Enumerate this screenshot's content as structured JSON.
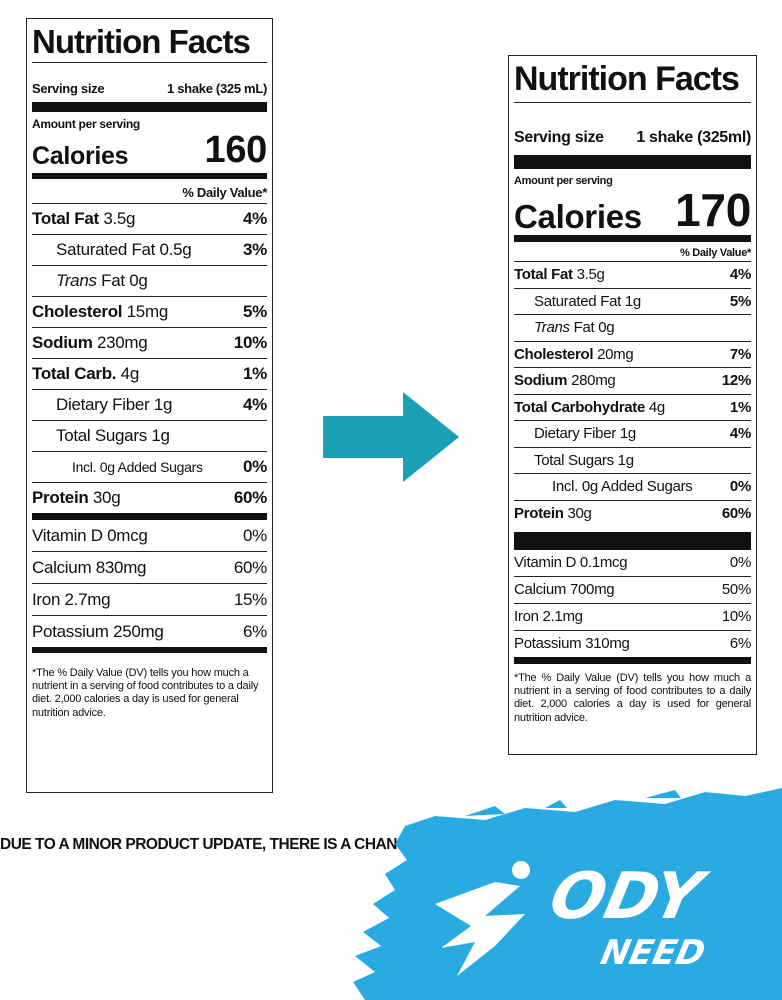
{
  "old_label": {
    "title": "Nutrition Facts",
    "serving_label": "Serving size",
    "serving_value": "1 shake (325 mL)",
    "amount_per_serving": "Amount per serving",
    "calories_label": "Calories",
    "calories_value": "160",
    "daily_value_header": "% Daily Value*",
    "total_fat": {
      "label": "Total Fat",
      "amount": "3.5g",
      "dv": "4%"
    },
    "saturated_fat": {
      "label": "Saturated Fat",
      "amount": "0.5g",
      "dv": "3%"
    },
    "trans_fat": {
      "label_italic": "Trans",
      "label": "Fat",
      "amount": "0g"
    },
    "cholesterol": {
      "label": "Cholesterol",
      "amount": "15mg",
      "dv": "5%"
    },
    "sodium": {
      "label": "Sodium",
      "amount": "230mg",
      "dv": "10%"
    },
    "total_carb": {
      "label": "Total Carb.",
      "amount": "4g",
      "dv": "1%"
    },
    "dietary_fiber": {
      "label": "Dietary Fiber",
      "amount": "1g",
      "dv": "4%"
    },
    "total_sugars": {
      "label": "Total Sugars",
      "amount": "1g"
    },
    "added_sugars": {
      "label": "Incl. 0g Added Sugars",
      "dv": "0%"
    },
    "protein": {
      "label": "Protein",
      "amount": "30g",
      "dv": "60%"
    },
    "vitamins": [
      {
        "label": "Vitamin D 0mcg",
        "dv": "0%"
      },
      {
        "label": "Calcium 830mg",
        "dv": "60%"
      },
      {
        "label": "Iron 2.7mg",
        "dv": "15%"
      },
      {
        "label": "Potassium 250mg",
        "dv": "6%"
      }
    ],
    "footnote": "*The % Daily Value (DV) tells you how much a nutrient in a serving of food contributes to a daily diet. 2,000 calories a day is used for general nutrition advice."
  },
  "new_label": {
    "title": "Nutrition Facts",
    "serving_label": "Serving size",
    "serving_value": "1 shake (325ml)",
    "amount_per_serving": "Amount per serving",
    "calories_label": "Calories",
    "calories_value": "170",
    "daily_value_header": "% Daily Value*",
    "total_fat": {
      "label": "Total Fat",
      "amount": "3.5g",
      "dv": "4%"
    },
    "saturated_fat": {
      "label": "Saturated Fat",
      "amount": "1g",
      "dv": "5%"
    },
    "trans_fat": {
      "label_italic": "Trans",
      "label": "Fat",
      "amount": "0g"
    },
    "cholesterol": {
      "label": "Cholesterol",
      "amount": "20mg",
      "dv": "7%"
    },
    "sodium": {
      "label": "Sodium",
      "amount": "280mg",
      "dv": "12%"
    },
    "total_carb": {
      "label": "Total Carbohydrate",
      "amount": "4g",
      "dv": "1%"
    },
    "dietary_fiber": {
      "label": "Dietary Fiber",
      "amount": "1g",
      "dv": "4%"
    },
    "total_sugars": {
      "label": "Total Sugars",
      "amount": "1g"
    },
    "added_sugars": {
      "label": "Incl. 0g Added Sugars",
      "dv": "0%"
    },
    "protein": {
      "label": "Protein",
      "amount": "30g",
      "dv": "60%"
    },
    "vitamins": [
      {
        "label": "Vitamin D 0.1mcg",
        "dv": "0%"
      },
      {
        "label": "Calcium 700mg",
        "dv": "50%"
      },
      {
        "label": "Iron 2.1mg",
        "dv": "10%"
      },
      {
        "label": "Potassium 310mg",
        "dv": "6%"
      }
    ],
    "footnote": "*The % Daily Value (DV) tells you how much a nutrient in a serving of food contributes to a daily diet. 2,000 calories a day is used for general nutrition advice."
  },
  "notice_text": "DUE TO A MINOR PRODUCT UPDATE, THERE IS A CHANCE YOU WILL REC",
  "logo": {
    "line1": "ODY",
    "line2": "NEED"
  },
  "colors": {
    "arrow": "#1a9fb5",
    "logo_bg": "#29abe2"
  },
  "icons": {
    "arrow": "arrow-right-icon",
    "logo": "runner-logo"
  }
}
